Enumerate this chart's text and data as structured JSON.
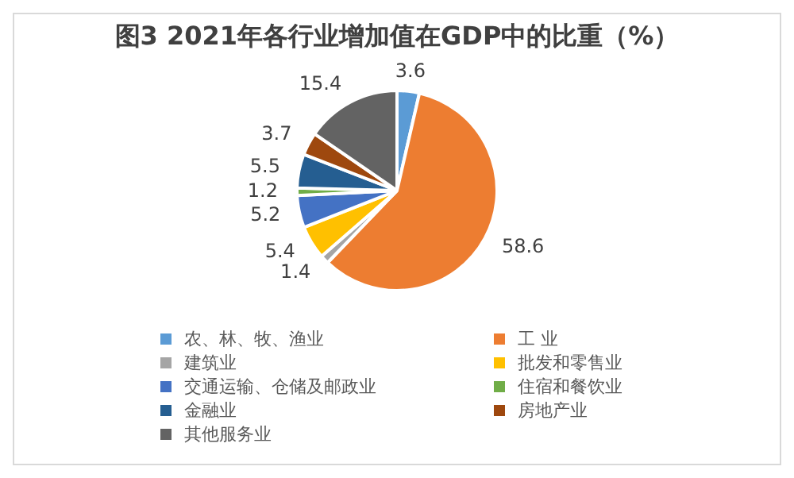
{
  "chart_data": {
    "type": "pie",
    "title": "图3  2021年各行业增加值在GDP中的比重（%）",
    "categories": [
      "农、林、牧、渔业",
      "工  业",
      "建筑业",
      "批发和零售业",
      "交通运输、仓储及邮政业",
      "住宿和餐饮业",
      "金融业",
      "房地产业",
      "其他服务业"
    ],
    "values": [
      3.6,
      58.6,
      1.4,
      5.4,
      5.2,
      1.2,
      5.5,
      3.7,
      15.4
    ],
    "colors": [
      "#5b9bd5",
      "#ed7d31",
      "#a5a5a5",
      "#ffc000",
      "#4472c4",
      "#70ad47",
      "#255e91",
      "#9e480e",
      "#636363"
    ],
    "data_labels": true,
    "legend": "bottom"
  }
}
